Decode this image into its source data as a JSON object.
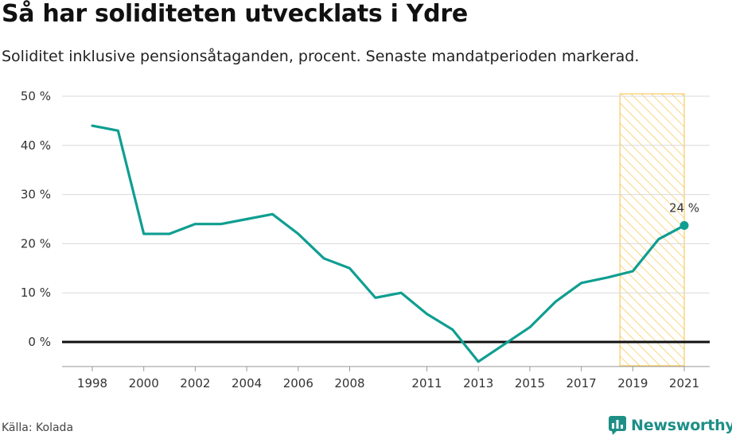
{
  "title": "Så har soliditeten utvecklats i Ydre",
  "subtitle": "Soliditet inklusive pensionsåtaganden, procent. Senaste mandatperioden markerad.",
  "source": "Källa: Kolada",
  "brand": {
    "name": "Newsworthy",
    "icon": "newsworthy-logo-icon",
    "color": "#1d8f86"
  },
  "chart_data": {
    "type": "line",
    "title": "Så har soliditeten utvecklats i Ydre",
    "xlabel": "",
    "ylabel": "",
    "ylim": [
      -5,
      50
    ],
    "xlim": [
      1998,
      2021
    ],
    "y_ticks": [
      0,
      10,
      20,
      30,
      40,
      50
    ],
    "y_tick_labels": [
      "0 %",
      "10 %",
      "20 %",
      "30 %",
      "40 %",
      "50 %"
    ],
    "x_ticks": [
      1998,
      2000,
      2002,
      2004,
      2006,
      2008,
      2011,
      2013,
      2015,
      2017,
      2019,
      2021
    ],
    "x_tick_labels": [
      "1998",
      "2000",
      "2002",
      "2004",
      "2006",
      "2008",
      "2011",
      "2013",
      "2015",
      "2017",
      "2019",
      "2021"
    ],
    "grid": true,
    "series": [
      {
        "color": "#0f9e91",
        "x": [
          1998,
          1999,
          2000,
          2001,
          2002,
          2003,
          2004,
          2005,
          2006,
          2007,
          2008,
          2009,
          2010,
          2011,
          2012,
          2013,
          2014,
          2015,
          2016,
          2017,
          2018,
          2019,
          2020,
          2021
        ],
        "values": [
          44,
          43,
          22,
          22,
          24,
          24,
          25,
          26,
          22,
          17,
          15,
          9,
          10,
          5.7,
          2.5,
          -4,
          -0.5,
          3,
          8.2,
          12,
          13.1,
          14.4,
          20.9,
          23.7
        ]
      }
    ],
    "highlight_period": {
      "from": 2018.5,
      "to": 2021,
      "color": "#f5c242"
    },
    "end_label": "24 %",
    "zero_line_color": "#111111"
  }
}
